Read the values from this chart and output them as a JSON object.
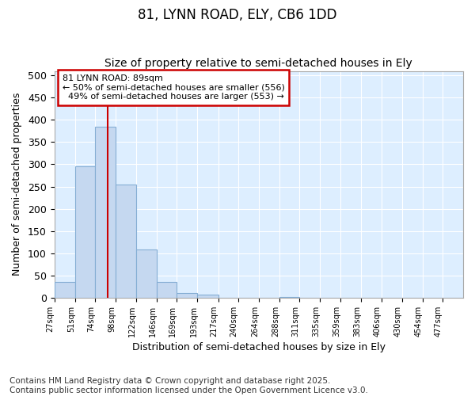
{
  "title": "81, LYNN ROAD, ELY, CB6 1DD",
  "subtitle": "Size of property relative to semi-detached houses in Ely",
  "xlabel": "Distribution of semi-detached houses by size in Ely",
  "ylabel": "Number of semi-detached properties",
  "bar_color": "#c5d8f0",
  "bar_edgecolor": "#85aed4",
  "background_color": "#ddeeff",
  "grid_color": "#ffffff",
  "property_size": 89,
  "vline_color": "#cc0000",
  "annotation_text": "81 LYNN ROAD: 89sqm\n← 50% of semi-detached houses are smaller (556)\n  49% of semi-detached houses are larger (553) →",
  "annotation_box_color": "#ffffff",
  "annotation_box_edgecolor": "#cc0000",
  "bins": [
    27,
    51,
    74,
    98,
    122,
    146,
    169,
    193,
    217,
    240,
    264,
    288,
    311,
    335,
    359,
    383,
    406,
    430,
    454,
    477,
    501
  ],
  "counts": [
    35,
    295,
    385,
    255,
    108,
    35,
    10,
    7,
    0,
    0,
    0,
    2,
    0,
    0,
    0,
    0,
    0,
    0,
    0,
    0
  ],
  "ylim": [
    0,
    510
  ],
  "yticks": [
    0,
    50,
    100,
    150,
    200,
    250,
    300,
    350,
    400,
    450,
    500
  ],
  "footnote": "Contains HM Land Registry data © Crown copyright and database right 2025.\nContains public sector information licensed under the Open Government Licence v3.0.",
  "title_fontsize": 12,
  "subtitle_fontsize": 10,
  "footnote_fontsize": 7.5
}
